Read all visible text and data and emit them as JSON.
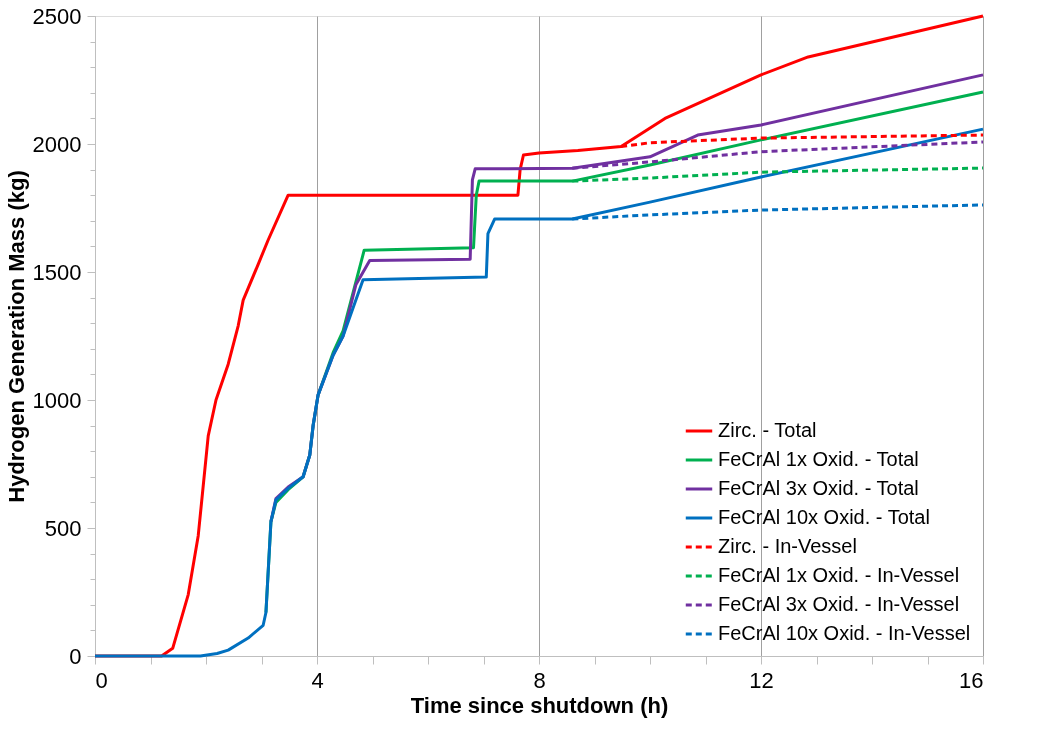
{
  "chart_data": {
    "type": "line",
    "xlabel": "Time since shutdown (h)",
    "ylabel": "Hydrogen Generation Mass (kg)",
    "xlim": [
      0,
      16
    ],
    "ylim": [
      0,
      2500
    ],
    "xticks": [
      0,
      {
        "value": 1,
        "label": null
      },
      {
        "value": 2,
        "label": null
      },
      {
        "value": 3,
        "label": null
      },
      4,
      {
        "value": 5,
        "label": null
      },
      {
        "value": 6,
        "label": null
      },
      {
        "value": 7,
        "label": null
      },
      8,
      {
        "value": 9,
        "label": null
      },
      {
        "value": 10,
        "label": null
      },
      {
        "value": 11,
        "label": null
      },
      12,
      {
        "value": 13,
        "label": null
      },
      {
        "value": 14,
        "label": null
      },
      {
        "value": 15,
        "label": null
      },
      16
    ],
    "yticks": [
      0,
      {
        "value": 100,
        "label": null
      },
      {
        "value": 200,
        "label": null
      },
      {
        "value": 300,
        "label": null
      },
      {
        "value": 400,
        "label": null
      },
      500,
      {
        "value": 600,
        "label": null
      },
      {
        "value": 700,
        "label": null
      },
      {
        "value": 800,
        "label": null
      },
      {
        "value": 900,
        "label": null
      },
      1000,
      {
        "value": 1100,
        "label": null
      },
      {
        "value": 1200,
        "label": null
      },
      {
        "value": 1300,
        "label": null
      },
      {
        "value": 1400,
        "label": null
      },
      1500,
      {
        "value": 1600,
        "label": null
      },
      {
        "value": 1700,
        "label": null
      },
      {
        "value": 1800,
        "label": null
      },
      {
        "value": 1900,
        "label": null
      },
      2000,
      {
        "value": 2100,
        "label": null
      },
      {
        "value": 2200,
        "label": null
      },
      {
        "value": 2300,
        "label": null
      },
      {
        "value": 2400,
        "label": null
      },
      2500
    ],
    "grid": "x",
    "legend": "bottom right",
    "marker": "none",
    "series": [
      {
        "name": "Zirc. - Total",
        "color": "#ff0000",
        "line_style": "solid",
        "x": [
          0,
          1.2,
          1.4,
          1.68,
          1.86,
          2.04,
          2.18,
          2.4,
          2.58,
          2.67,
          2.94,
          3.12,
          3.48,
          7.62,
          7.66,
          7.72,
          8,
          8.7,
          9.48,
          10.27,
          12,
          12.85,
          16
        ],
        "values": [
          0,
          0,
          30,
          240,
          470,
          860,
          1000,
          1140,
          1290,
          1390,
          1530,
          1625,
          1800,
          1800,
          1900,
          1957,
          1965,
          1975,
          1990,
          2100,
          2270,
          2340,
          2500
        ]
      },
      {
        "name": "FeCrAl 1x Oxid. - Total",
        "color": "#00b050",
        "line_style": "solid",
        "x": [
          3.08,
          3.17,
          3.26,
          3.48,
          3.75,
          3.87,
          3.93,
          4.02,
          4.29,
          4.47,
          4.85,
          6.82,
          6.87,
          6.92,
          8.6,
          10,
          12,
          16
        ],
        "values": [
          170,
          525,
          600,
          650,
          700,
          785,
          900,
          1020,
          1185,
          1270,
          1585,
          1595,
          1800,
          1855,
          1855,
          1918,
          2016,
          2203
        ]
      },
      {
        "name": "FeCrAl 3x Oxid. - Total",
        "color": "#7030a0",
        "line_style": "solid",
        "x": [
          3.17,
          3.26,
          3.48,
          3.75,
          3.87,
          3.93,
          4.02,
          4.29,
          4.47,
          4.7,
          4.95,
          6.76,
          6.8,
          6.85,
          8.6,
          10,
          10.86,
          12,
          16
        ],
        "values": [
          525,
          615,
          660,
          700,
          785,
          900,
          1020,
          1175,
          1250,
          1450,
          1545,
          1550,
          1860,
          1903,
          1905,
          1950,
          2035,
          2074,
          2270
        ]
      },
      {
        "name": "FeCrAl 10x Oxid. - Total",
        "color": "#0070c0",
        "line_style": "solid",
        "x": [
          0,
          1.9,
          2.2,
          2.4,
          2.76,
          3.03,
          3.08,
          3.17,
          3.26,
          3.48,
          3.75,
          3.87,
          3.93,
          4.02,
          4.29,
          4.47,
          4.83,
          7.05,
          7.08,
          7.2,
          8.6,
          10,
          12,
          16
        ],
        "values": [
          0,
          0,
          10,
          23,
          70,
          120,
          170,
          525,
          610,
          655,
          700,
          785,
          900,
          1020,
          1175,
          1250,
          1470,
          1480,
          1650,
          1707,
          1707,
          1773,
          1871,
          2058
        ]
      },
      {
        "name": "Zirc. - In-Vessel",
        "color": "#ff0000",
        "line_style": "dashed",
        "x": [
          9.48,
          10,
          12,
          16
        ],
        "values": [
          1990,
          2005,
          2023,
          2035
        ]
      },
      {
        "name": "FeCrAl 1x Oxid. - In-Vessel",
        "color": "#00b050",
        "line_style": "dashed",
        "x": [
          8.6,
          10,
          12,
          16
        ],
        "values": [
          1855,
          1867,
          1890,
          1906
        ]
      },
      {
        "name": "FeCrAl 3x Oxid. - In-Vessel",
        "color": "#7030a0",
        "line_style": "dashed",
        "x": [
          8.6,
          10,
          12,
          16
        ],
        "values": [
          1905,
          1930,
          1970,
          2008
        ]
      },
      {
        "name": "FeCrAl 10x Oxid. - In-Vessel",
        "color": "#0070c0",
        "line_style": "dashed",
        "x": [
          8.6,
          10,
          12,
          16
        ],
        "values": [
          1707,
          1723,
          1742,
          1762
        ]
      }
    ]
  }
}
